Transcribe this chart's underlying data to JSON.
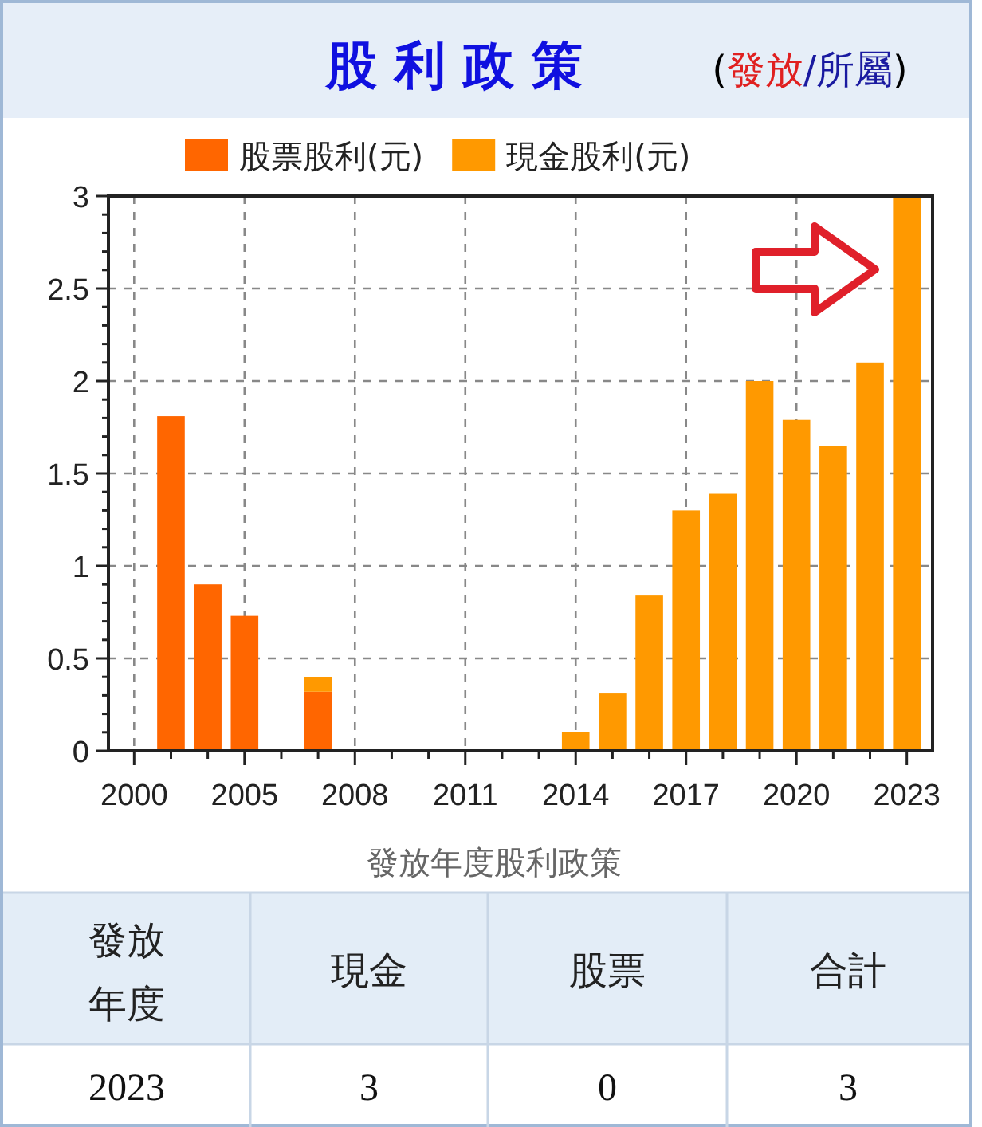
{
  "chart_data": {
    "type": "bar",
    "stacked": true,
    "title": "股 利 政 策",
    "subtitle": "(發放/所屬)",
    "categories": [
      "2000",
      null,
      null,
      "2005",
      null,
      null,
      "2008",
      null,
      null,
      "2011",
      null,
      null,
      "2014",
      null,
      null,
      "2017",
      null,
      null,
      "2020",
      null,
      null,
      "2023"
    ],
    "series": [
      {
        "name": "股票股利(元)",
        "color": "#ff6600",
        "values": [
          null,
          1.81,
          0.9,
          0.73,
          null,
          0.32,
          null,
          null,
          null,
          null,
          null,
          null,
          null,
          null,
          null,
          null,
          null,
          null,
          null,
          null,
          null,
          null
        ]
      },
      {
        "name": "現金股利(元)",
        "color": "#ff9900",
        "values": [
          null,
          null,
          null,
          null,
          null,
          0.08,
          null,
          null,
          null,
          null,
          null,
          null,
          0.1,
          0.31,
          0.84,
          1.3,
          1.39,
          2.0,
          1.79,
          1.65,
          2.1,
          3.0
        ]
      }
    ],
    "ylim": [
      0,
      3
    ],
    "yticks": [
      0,
      {
        "value": 0.1,
        "label": null
      },
      {
        "value": 0.2,
        "label": null
      },
      {
        "value": 0.3,
        "label": null
      },
      {
        "value": 0.4,
        "label": null
      },
      0.5,
      {
        "value": 0.6,
        "label": null
      },
      {
        "value": 0.7,
        "label": null
      },
      {
        "value": 0.8,
        "label": null
      },
      {
        "value": 0.9,
        "label": null
      },
      1,
      {
        "value": 1.1,
        "label": null
      },
      {
        "value": 1.2,
        "label": null
      },
      {
        "value": 1.3,
        "label": null
      },
      {
        "value": 1.4,
        "label": null
      },
      1.5,
      {
        "value": 1.6,
        "label": null
      },
      {
        "value": 1.7,
        "label": null
      },
      {
        "value": 1.8,
        "label": null
      },
      {
        "value": 1.9,
        "label": null
      },
      2,
      {
        "value": 2.1,
        "label": null
      },
      {
        "value": 2.2,
        "label": null
      },
      {
        "value": 2.3,
        "label": null
      },
      {
        "value": 2.4,
        "label": null
      },
      2.5,
      {
        "value": 2.6,
        "label": null
      },
      {
        "value": 2.7,
        "label": null
      },
      {
        "value": 2.8,
        "label": null
      },
      {
        "value": 2.9,
        "label": null
      },
      3
    ],
    "grid": true,
    "legend": "top",
    "annotations": [
      "發放年度股利政策",
      "發放年度",
      "現金",
      "股票",
      "合計",
      "2023",
      "3",
      "0",
      "3"
    ]
  }
}
